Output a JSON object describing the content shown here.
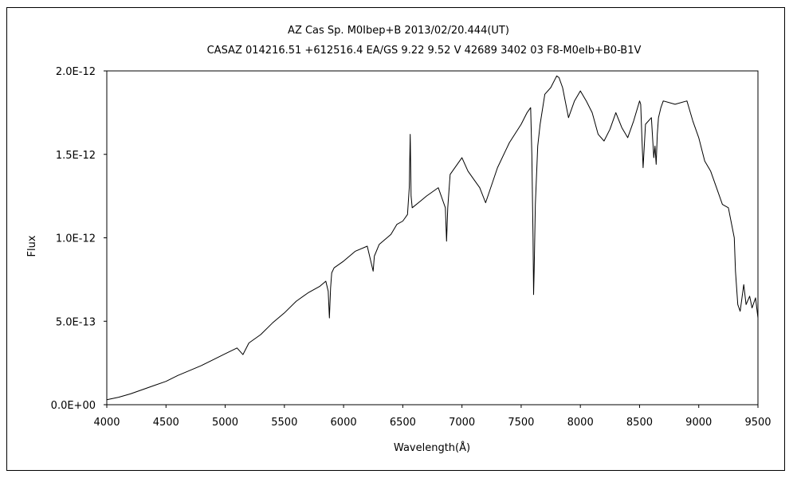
{
  "chart_data": {
    "type": "line",
    "title": "AZ Cas    Sp. M0Ibep+B    2013/02/20.444(UT)",
    "subtitle": "CASAZ 014216.51 +612516.4 EA/GS 9.22 9.52 V 42689 3402 03 F8-M0eIb+B0-B1V",
    "xlabel": "Wavelength(Å)",
    "ylabel": "Flux",
    "xlim": [
      4000,
      9500
    ],
    "ylim": [
      0,
      2e-12
    ],
    "grid": false,
    "legend": "none",
    "x_ticks": [
      4000,
      4500,
      5000,
      5500,
      6000,
      6500,
      7000,
      7500,
      8000,
      8500,
      9000,
      9500
    ],
    "x_tick_labels": [
      "4000",
      "4500",
      "5000",
      "5500",
      "6000",
      "6500",
      "7000",
      "7500",
      "8000",
      "8500",
      "9000",
      "9500"
    ],
    "y_ticks": [
      0,
      5e-13,
      1e-12,
      1.5e-12,
      2e-12
    ],
    "y_tick_labels": [
      "0.0E+00",
      "5.0E-13",
      "1.0E-12",
      "1.5E-12",
      "2.0E-12"
    ],
    "series": [
      {
        "color": "#000000",
        "x": [
          4000,
          4100,
          4200,
          4300,
          4400,
          4500,
          4600,
          4700,
          4800,
          4900,
          5000,
          5100,
          5150,
          5200,
          5300,
          5400,
          5500,
          5600,
          5700,
          5800,
          5850,
          5870,
          5880,
          5890,
          5900,
          5920,
          6000,
          6100,
          6200,
          6250,
          6260,
          6300,
          6400,
          6450,
          6500,
          6540,
          6555,
          6563,
          6570,
          6580,
          6650,
          6700,
          6800,
          6860,
          6870,
          6880,
          6900,
          7000,
          7050,
          7100,
          7150,
          7200,
          7300,
          7400,
          7500,
          7550,
          7580,
          7590,
          7600,
          7605,
          7610,
          7620,
          7640,
          7660,
          7700,
          7750,
          7800,
          7820,
          7850,
          7900,
          7950,
          8000,
          8050,
          8100,
          8150,
          8200,
          8250,
          8300,
          8350,
          8400,
          8450,
          8500,
          8510,
          8520,
          8530,
          8550,
          8600,
          8620,
          8630,
          8640,
          8650,
          8660,
          8680,
          8700,
          8800,
          8900,
          8950,
          9000,
          9050,
          9100,
          9150,
          9200,
          9250,
          9300,
          9310,
          9330,
          9350,
          9380,
          9400,
          9430,
          9450,
          9480,
          9500
        ],
        "y": [
          3e-14,
          4.5e-14,
          6.5e-14,
          9e-14,
          1.15e-13,
          1.4e-13,
          1.75e-13,
          2.05e-13,
          2.35e-13,
          2.7e-13,
          3.05e-13,
          3.4e-13,
          3e-13,
          3.7e-13,
          4.2e-13,
          4.9e-13,
          5.5e-13,
          6.2e-13,
          6.7e-13,
          7.1e-13,
          7.4e-13,
          6.8e-13,
          5.2e-13,
          7e-13,
          7.9e-13,
          8.2e-13,
          8.6e-13,
          9.2e-13,
          9.5e-13,
          8e-13,
          8.9e-13,
          9.6e-13,
          1.02e-12,
          1.08e-12,
          1.1e-12,
          1.14e-12,
          1.3e-12,
          1.62e-12,
          1.25e-12,
          1.18e-12,
          1.22e-12,
          1.25e-12,
          1.3e-12,
          1.18e-12,
          9.8e-13,
          1.18e-12,
          1.38e-12,
          1.48e-12,
          1.4e-12,
          1.35e-12,
          1.3e-12,
          1.21e-12,
          1.42e-12,
          1.57e-12,
          1.68e-12,
          1.75e-12,
          1.78e-12,
          1.5e-12,
          1e-12,
          6.6e-13,
          8e-13,
          1.2e-12,
          1.55e-12,
          1.68e-12,
          1.86e-12,
          1.9e-12,
          1.97e-12,
          1.96e-12,
          1.9e-12,
          1.72e-12,
          1.82e-12,
          1.88e-12,
          1.82e-12,
          1.75e-12,
          1.62e-12,
          1.58e-12,
          1.65e-12,
          1.75e-12,
          1.66e-12,
          1.6e-12,
          1.7e-12,
          1.82e-12,
          1.8e-12,
          1.6e-12,
          1.42e-12,
          1.68e-12,
          1.72e-12,
          1.48e-12,
          1.55e-12,
          1.44e-12,
          1.62e-12,
          1.72e-12,
          1.78e-12,
          1.82e-12,
          1.8e-12,
          1.82e-12,
          1.7e-12,
          1.6e-12,
          1.46e-12,
          1.4e-12,
          1.3e-12,
          1.2e-12,
          1.18e-12,
          1e-12,
          8e-13,
          6e-13,
          5.6e-13,
          7.2e-13,
          6e-13,
          6.5e-13,
          5.8e-13,
          6.4e-13,
          5.2e-13
        ]
      }
    ]
  }
}
